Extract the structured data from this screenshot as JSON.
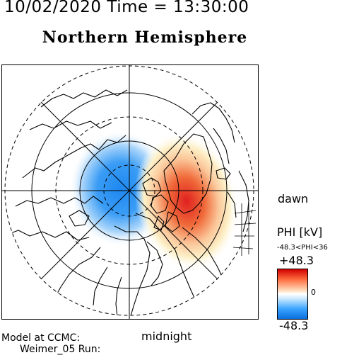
{
  "header": {
    "timestamp": "10/02/2020 Time = 13:30:00",
    "title": "Northern Hemisphere"
  },
  "map": {
    "local_time_labels": {
      "right": "dawn",
      "bottom": "midnight"
    },
    "potential_pattern": {
      "negative_cell_color": "#1e88f0",
      "positive_cell_color": "#e02020"
    }
  },
  "colorbar": {
    "title": "PHI [kV]",
    "range_text": "-48.3<PHI<36",
    "max_label": "+48.3",
    "zero_label": "0",
    "min_label": "-48.3"
  },
  "footer": {
    "model_label": "Model at CCMC:",
    "run_label": "Weimer_05 Run:"
  }
}
